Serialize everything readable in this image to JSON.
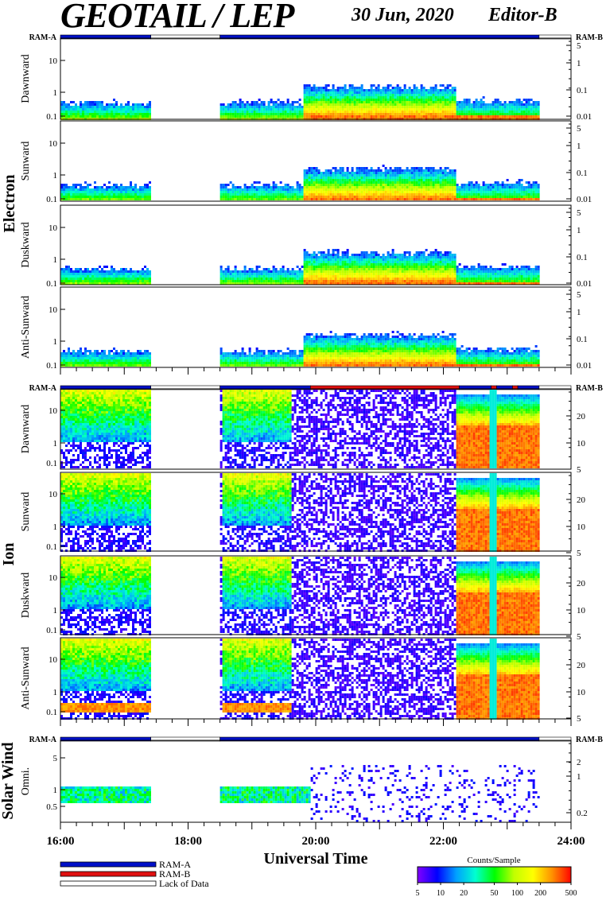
{
  "header": {
    "title": "GEOTAIL / LEP",
    "date": "30 Jun, 2020",
    "editor": "Editor-B"
  },
  "colors": {
    "ram_a": "#0010c8",
    "ram_b": "#e01010",
    "lack_of_data": "#ffffff",
    "colorbar_stops": [
      "#8000ff",
      "#0000ff",
      "#00a0ff",
      "#00ffd0",
      "#00ff00",
      "#c0ff00",
      "#ffff00",
      "#ff9000",
      "#ff0000"
    ]
  },
  "chart_data": {
    "type": "heatmap",
    "xlabel": "Universal Time",
    "x_range": [
      "16:00",
      "24:00"
    ],
    "x_ticks": [
      "16:00",
      "18:00",
      "20:00",
      "22:00",
      "24:00"
    ],
    "groups": [
      {
        "name": "Electron",
        "ram_left": "RAM-A",
        "ram_right": "RAM-B",
        "ram_bar": [
          {
            "from": "16:00",
            "to": "17:25",
            "mode": "RAM-A"
          },
          {
            "from": "17:25",
            "to": "18:30",
            "mode": "Lack of Data"
          },
          {
            "from": "18:30",
            "to": "23:30",
            "mode": "RAM-A"
          },
          {
            "from": "23:30",
            "to": "24:00",
            "mode": "Lack of Data"
          }
        ],
        "left_ticks": [
          "10",
          "1",
          "0.1"
        ],
        "right_ticks": [
          "5",
          "1",
          "0.1",
          "0.01"
        ],
        "panels": [
          {
            "label": "Dawnward"
          },
          {
            "label": "Sunward"
          },
          {
            "label": "Duskward"
          },
          {
            "label": "Anti-Sunward"
          }
        ]
      },
      {
        "name": "Ion",
        "ram_left": "RAM-A",
        "ram_right": "RAM-B",
        "ram_bar": [
          {
            "from": "16:00",
            "to": "17:25",
            "mode": "RAM-A"
          },
          {
            "from": "17:25",
            "to": "18:30",
            "mode": "Lack of Data"
          },
          {
            "from": "18:30",
            "to": "19:55",
            "mode": "RAM-A"
          },
          {
            "from": "19:55",
            "to": "22:15",
            "mode": "RAM-B"
          },
          {
            "from": "22:15",
            "to": "22:45",
            "mode": "RAM-A"
          },
          {
            "from": "22:45",
            "to": "22:50",
            "mode": "RAM-B"
          },
          {
            "from": "22:50",
            "to": "23:05",
            "mode": "RAM-A"
          },
          {
            "from": "23:05",
            "to": "23:10",
            "mode": "RAM-B"
          },
          {
            "from": "23:10",
            "to": "23:30",
            "mode": "RAM-A"
          },
          {
            "from": "23:30",
            "to": "24:00",
            "mode": "Lack of Data"
          }
        ],
        "left_ticks": [
          "10",
          "1",
          "0.1"
        ],
        "right_ticks": [
          "20",
          "10",
          "5"
        ],
        "panels": [
          {
            "label": "Dawnward"
          },
          {
            "label": "Sunward"
          },
          {
            "label": "Duskward"
          },
          {
            "label": "Anti-Sunward"
          }
        ]
      },
      {
        "name": "Solar Wind",
        "ram_left": "RAM-A",
        "ram_right": "RAM-B",
        "ram_bar": [
          {
            "from": "16:00",
            "to": "17:25",
            "mode": "RAM-A"
          },
          {
            "from": "17:25",
            "to": "18:30",
            "mode": "Lack of Data"
          },
          {
            "from": "18:30",
            "to": "23:30",
            "mode": "RAM-A"
          },
          {
            "from": "23:30",
            "to": "24:00",
            "mode": "Lack of Data"
          }
        ],
        "left_ticks": [
          "5",
          "1",
          "0.5"
        ],
        "right_ticks": [
          "2",
          "1",
          "0.2"
        ],
        "panels": [
          {
            "label": "Omni."
          }
        ]
      }
    ],
    "legend": [
      {
        "label": "RAM-A",
        "color": "#0010c8"
      },
      {
        "label": "RAM-B",
        "color": "#e01010"
      },
      {
        "label": "Lack of Data",
        "color": "#ffffff"
      }
    ],
    "colorbar": {
      "title": "Counts/Sample",
      "ticks": [
        "5",
        "10",
        "20",
        "50",
        "100",
        "200",
        "500"
      ]
    }
  }
}
